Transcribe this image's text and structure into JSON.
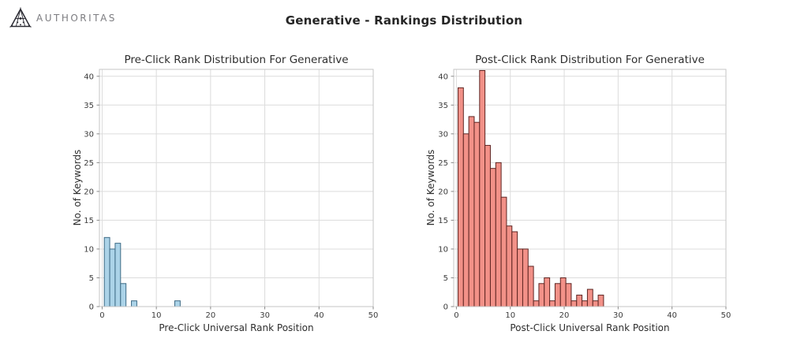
{
  "brand": {
    "name": "AUTHORITAS"
  },
  "page_title": "Generative - Rankings Distribution",
  "chart_data": [
    {
      "type": "bar",
      "subtype": "histogram",
      "title": "Pre-Click Rank Distribution For Generative",
      "xlabel": "Pre-Click Universal Rank Position",
      "ylabel": "No. of Keywords",
      "xlim": [
        -0.5,
        50
      ],
      "ylim": [
        0,
        41.2
      ],
      "xticks": [
        0,
        10,
        20,
        30,
        40,
        50
      ],
      "yticks": [
        0,
        5,
        10,
        15,
        20,
        25,
        30,
        35,
        40
      ],
      "grid": true,
      "legend": "none",
      "bin_width": 1,
      "bars": [
        {
          "x": 0.4,
          "count": 12
        },
        {
          "x": 1.4,
          "count": 10
        },
        {
          "x": 2.4,
          "count": 11
        },
        {
          "x": 3.4,
          "count": 4
        },
        {
          "x": 5.4,
          "count": 1
        },
        {
          "x": 13.4,
          "count": 1
        }
      ],
      "bar_fill": "#abd3e8",
      "bar_edge": "#3d6a85"
    },
    {
      "type": "bar",
      "subtype": "histogram",
      "title": "Post-Click Rank Distribution For Generative",
      "xlabel": "Post-Click Universal Rank Position",
      "ylabel": "No. of Keywords",
      "xlim": [
        -0.5,
        50
      ],
      "ylim": [
        0,
        41.2
      ],
      "xticks": [
        0,
        10,
        20,
        30,
        40,
        50
      ],
      "yticks": [
        0,
        5,
        10,
        15,
        20,
        25,
        30,
        35,
        40
      ],
      "grid": true,
      "legend": "none",
      "bin_width": 1,
      "bars": [
        {
          "x": 0.3,
          "count": 38
        },
        {
          "x": 1.3,
          "count": 30
        },
        {
          "x": 2.3,
          "count": 33
        },
        {
          "x": 3.3,
          "count": 32
        },
        {
          "x": 4.3,
          "count": 41
        },
        {
          "x": 5.3,
          "count": 28
        },
        {
          "x": 6.3,
          "count": 24
        },
        {
          "x": 7.3,
          "count": 25
        },
        {
          "x": 8.3,
          "count": 19
        },
        {
          "x": 9.3,
          "count": 14
        },
        {
          "x": 10.3,
          "count": 13
        },
        {
          "x": 11.3,
          "count": 10
        },
        {
          "x": 12.3,
          "count": 10
        },
        {
          "x": 13.3,
          "count": 7
        },
        {
          "x": 14.3,
          "count": 1
        },
        {
          "x": 15.3,
          "count": 4
        },
        {
          "x": 16.3,
          "count": 5
        },
        {
          "x": 17.3,
          "count": 1
        },
        {
          "x": 18.3,
          "count": 4
        },
        {
          "x": 19.3,
          "count": 5
        },
        {
          "x": 20.3,
          "count": 4
        },
        {
          "x": 21.3,
          "count": 1
        },
        {
          "x": 22.3,
          "count": 2
        },
        {
          "x": 23.3,
          "count": 1
        },
        {
          "x": 24.3,
          "count": 3
        },
        {
          "x": 25.3,
          "count": 1
        },
        {
          "x": 26.3,
          "count": 2
        }
      ],
      "bar_fill": "#f29188",
      "bar_edge": "#5e2522"
    }
  ],
  "style_colors": {
    "grid": "#dcdcdc",
    "spine": "#c6c6c6",
    "tick_mark": "#8a8a8a",
    "tick_label": "#3c3c3c"
  }
}
